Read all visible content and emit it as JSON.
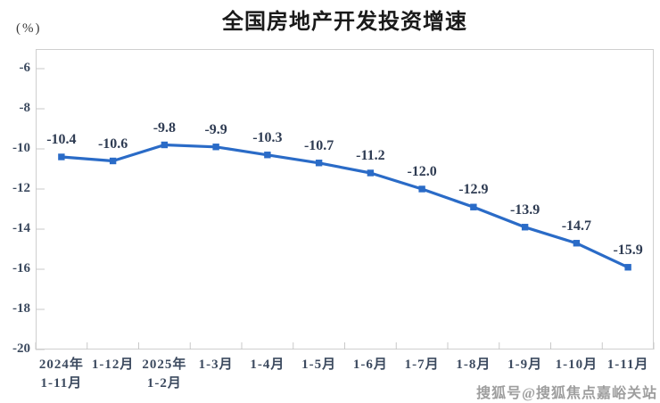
{
  "header": {
    "title": "全国房地产开发投资增速",
    "unit_label": "(%)"
  },
  "watermark": "搜狐号@搜狐焦点嘉峪关站",
  "chart_data": {
    "type": "line",
    "title": "全国房地产开发投资增速",
    "ylabel": "(%)",
    "categories": [
      "2024年 1-11月",
      "1-12月",
      "2025年 1-2月",
      "1-3月",
      "1-4月",
      "1-5月",
      "1-6月",
      "1-7月",
      "1-8月",
      "1-9月",
      "1-10月",
      "1-11月"
    ],
    "values": [
      -10.4,
      -10.6,
      -9.8,
      -9.9,
      -10.3,
      -10.7,
      -11.2,
      -12.0,
      -12.9,
      -13.9,
      -14.7,
      -15.9
    ],
    "data_labels": [
      "-10.4",
      "-10.6",
      "-9.8",
      "-9.9",
      "-10.3",
      "-10.7",
      "-11.2",
      "-12.0",
      "-12.9",
      "-13.9",
      "-14.7",
      "-15.9"
    ],
    "ylim": [
      -20,
      -6
    ],
    "yticks": [
      -6,
      -8,
      -10,
      -12,
      -14,
      -16,
      -18,
      -20
    ],
    "grid": false,
    "legend": "none",
    "marker": "square",
    "line_color": "#2a6bc7",
    "data_label_color": "#2e3b52",
    "tick_label_color": "#3c4a5f",
    "axis_color": "#c9c9c9"
  }
}
